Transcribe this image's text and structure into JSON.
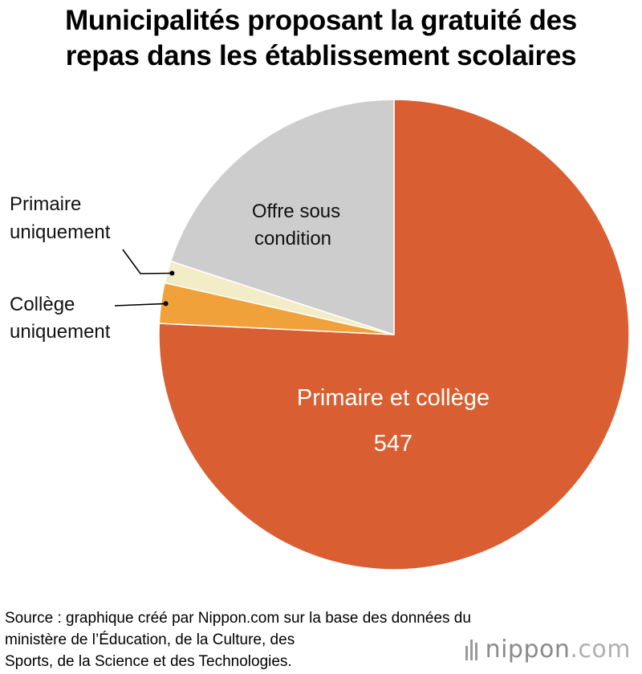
{
  "title": {
    "line1": "Municipalités proposant la gratuité des",
    "line2": "repas dans les établissement scolaires"
  },
  "colors": {
    "primaire_et_college": "#D95F33",
    "offre_sous_condition": "#CDCDCD",
    "primaire_uniquement": "#F2EDC6",
    "college_uniquement": "#F0A13A"
  },
  "chart_data": {
    "type": "pie",
    "slices": [
      {
        "label": "Primaire et collège",
        "value": 547,
        "value_label": "547",
        "color": "#D95F33"
      },
      {
        "label_lines": [
          "Collège",
          "uniquement"
        ],
        "label": "Collège uniquement",
        "value": 20,
        "color": "#F0A13A"
      },
      {
        "label_lines": [
          "Primaire",
          "uniquement"
        ],
        "label": "Primaire uniquement",
        "value": 11,
        "color": "#F2EDC6"
      },
      {
        "label_lines": [
          "Offre sous",
          "condition"
        ],
        "label": "Offre sous condition",
        "value": 144,
        "color": "#CDCDCD"
      }
    ]
  },
  "source": {
    "line1": "Source : graphique créé par Nippon.com sur la base des données du",
    "line2": "ministère de l’Éducation, de la Culture, des",
    "line3": "Sports, de la Science et des Technologies."
  },
  "logo": {
    "name": "nippon",
    "suffix": ".com",
    "icon": "nippon-bars-icon"
  }
}
